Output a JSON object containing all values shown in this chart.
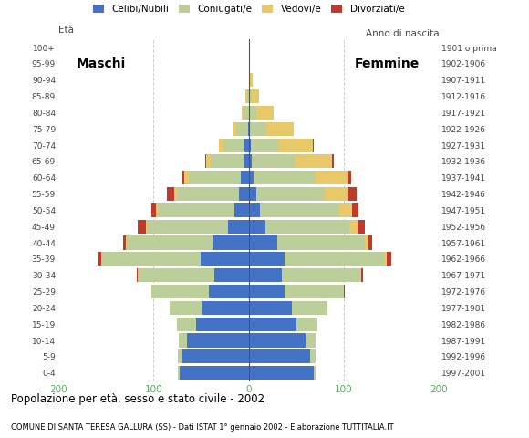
{
  "age_groups": [
    "0-4",
    "5-9",
    "10-14",
    "15-19",
    "20-24",
    "25-29",
    "30-34",
    "35-39",
    "40-44",
    "45-49",
    "50-54",
    "55-59",
    "60-64",
    "65-69",
    "70-74",
    "75-79",
    "80-84",
    "85-89",
    "90-94",
    "95-99",
    "100+"
  ],
  "birth_years": [
    "1997-2001",
    "1992-1996",
    "1987-1991",
    "1982-1986",
    "1977-1981",
    "1972-1976",
    "1967-1971",
    "1962-1966",
    "1957-1961",
    "1952-1956",
    "1947-1951",
    "1942-1946",
    "1937-1941",
    "1932-1936",
    "1927-1931",
    "1922-1926",
    "1917-1921",
    "1912-1916",
    "1907-1911",
    "1902-1906",
    "1901 o prima"
  ],
  "colors": {
    "celibi": "#4472C4",
    "coniugati": "#BCCF9A",
    "vedovi": "#E8C96A",
    "divorziati": "#C0392B"
  },
  "males": {
    "celibi": [
      72,
      70,
      65,
      55,
      48,
      42,
      36,
      50,
      38,
      22,
      15,
      10,
      8,
      5,
      4,
      1,
      0,
      0,
      0,
      0,
      0
    ],
    "coniugati": [
      2,
      4,
      8,
      20,
      35,
      60,
      80,
      105,
      90,
      85,
      80,
      65,
      55,
      35,
      22,
      12,
      5,
      2,
      0,
      0,
      0
    ],
    "vedovi": [
      0,
      0,
      0,
      0,
      0,
      0,
      0,
      0,
      1,
      1,
      2,
      3,
      5,
      5,
      5,
      3,
      2,
      1,
      0,
      0,
      0
    ],
    "divorziati": [
      0,
      0,
      0,
      0,
      0,
      0,
      1,
      4,
      3,
      8,
      5,
      8,
      2,
      1,
      0,
      0,
      0,
      0,
      0,
      0,
      0
    ]
  },
  "females": {
    "celibi": [
      68,
      65,
      60,
      50,
      45,
      38,
      35,
      38,
      30,
      18,
      12,
      8,
      5,
      3,
      2,
      1,
      0,
      0,
      0,
      0,
      0
    ],
    "coniugati": [
      2,
      5,
      10,
      22,
      38,
      62,
      82,
      105,
      92,
      88,
      82,
      72,
      65,
      45,
      30,
      18,
      8,
      3,
      1,
      0,
      0
    ],
    "vedovi": [
      0,
      0,
      0,
      0,
      0,
      0,
      1,
      2,
      4,
      8,
      15,
      25,
      35,
      40,
      35,
      28,
      18,
      8,
      3,
      1,
      0
    ],
    "divorziati": [
      0,
      0,
      0,
      0,
      0,
      1,
      2,
      5,
      4,
      8,
      6,
      8,
      3,
      1,
      1,
      0,
      0,
      0,
      0,
      0,
      0
    ]
  },
  "title": "Popolazione per età, sesso e stato civile - 2002",
  "subtitle": "COMUNE DI SANTA TERESA GALLURA (SS) - Dati ISTAT 1° gennaio 2002 - Elaborazione TUTTITALIA.IT",
  "xlim": 200,
  "legend_labels": [
    "Celibi/Nubili",
    "Coniugati/e",
    "Vedovi/e",
    "Divorziati/e"
  ],
  "maschi_label": "Maschi",
  "femmine_label": "Femmine",
  "eta_label": "Età",
  "anno_label": "Anno di nascita",
  "bg_color": "#FFFFFF",
  "grid_color": "#CCCCCC",
  "tick_color": "#5AAF5A",
  "label_color": "#444444"
}
